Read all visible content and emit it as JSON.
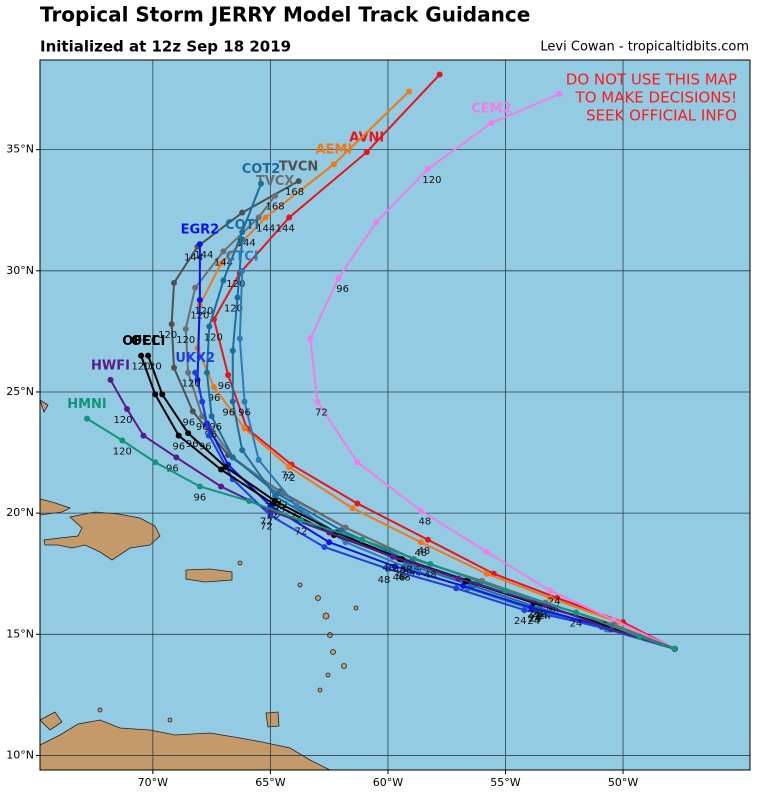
{
  "chart_data": {
    "type": "track_map",
    "title": "Tropical Storm JERRY Model Track Guidance",
    "subtitle": "Initialized at 12z Sep 18 2019",
    "credit": "Levi Cowan - tropicaltidbits.com",
    "warning": [
      "DO NOT USE THIS MAP",
      "TO MAKE DECISIONS!",
      "SEEK OFFICIAL INFO"
    ],
    "xlim": [
      -74.8,
      -44.6
    ],
    "ylim": [
      9.4,
      38.7
    ],
    "xticks": [
      {
        "value": -70,
        "label": "70°W"
      },
      {
        "value": -65,
        "label": "65°W"
      },
      {
        "value": -60,
        "label": "60°W"
      },
      {
        "value": -55,
        "label": "55°W"
      },
      {
        "value": -50,
        "label": "50°W"
      }
    ],
    "yticks": [
      {
        "value": 10,
        "label": "10°N"
      },
      {
        "value": 15,
        "label": "15°N"
      },
      {
        "value": 20,
        "label": "20°N"
      },
      {
        "value": 25,
        "label": "25°N"
      },
      {
        "value": 30,
        "label": "30°N"
      },
      {
        "value": 35,
        "label": "35°N"
      }
    ],
    "grid": true,
    "series": [
      {
        "name": "AVNI",
        "color": "#e8141c",
        "lon": [
          -47.8,
          -50.0,
          -52.8,
          -55.5,
          -58.3,
          -61.3,
          -64.1,
          -66.0,
          -66.8,
          -67.4,
          -66.3,
          -64.2,
          -60.9,
          -57.8
        ],
        "lat": [
          14.4,
          15.5,
          16.5,
          17.5,
          18.9,
          20.4,
          22.0,
          23.5,
          25.7,
          28.0,
          29.9,
          32.2,
          34.9,
          38.1
        ],
        "hour_labels": [
          null,
          null,
          24,
          null,
          48,
          null,
          72,
          null,
          96,
          null,
          120,
          144,
          null,
          null
        ]
      },
      {
        "name": "AEMI",
        "color": "#f07818",
        "lon": [
          -47.8,
          -50.2,
          -53.1,
          -55.8,
          -58.6,
          -61.5,
          -64.2,
          -66.1,
          -67.4,
          -68.1,
          -68.0,
          -67.1,
          -65.2,
          -62.3,
          -59.1
        ],
        "lat": [
          14.4,
          15.5,
          16.5,
          17.5,
          18.8,
          20.2,
          21.9,
          23.5,
          25.2,
          26.8,
          28.6,
          30.3,
          32.2,
          34.4,
          37.4
        ],
        "hour_labels": [
          null,
          null,
          24,
          null,
          48,
          null,
          72,
          null,
          96,
          null,
          120,
          null,
          144,
          null,
          null
        ]
      },
      {
        "name": "CEM2",
        "color": "#f07ce8",
        "lon": [
          -47.8,
          -50.4,
          -53.1,
          -55.8,
          -58.6,
          -61.3,
          -63.0,
          -63.3,
          -62.1,
          -60.5,
          -58.3,
          -55.6,
          -52.7
        ],
        "lat": [
          14.4,
          15.6,
          16.8,
          18.4,
          20.1,
          22.1,
          24.6,
          27.2,
          29.7,
          32.0,
          34.2,
          36.1,
          37.3
        ],
        "hour_labels": [
          null,
          null,
          24,
          null,
          48,
          null,
          72,
          null,
          96,
          null,
          120,
          null,
          null
        ]
      },
      {
        "name": "TVCN",
        "color": "#505050",
        "lon": [
          -47.8,
          -50.4,
          -53.3,
          -56.0,
          -58.9,
          -61.8,
          -64.6,
          -66.8,
          -68.3,
          -69.1,
          -69.2,
          -69.1,
          -68.1,
          -66.2,
          -63.8
        ],
        "lat": [
          14.4,
          15.4,
          16.3,
          17.2,
          18.1,
          19.4,
          20.9,
          22.4,
          24.2,
          26.0,
          27.8,
          29.5,
          31.0,
          32.4,
          33.7
        ],
        "hour_labels": [
          null,
          null,
          24,
          null,
          48,
          null,
          72,
          null,
          96,
          null,
          120,
          null,
          144,
          null,
          168
        ]
      },
      {
        "name": "TVCX",
        "color": "#6e6e6e",
        "lon": [
          -47.8,
          -50.4,
          -53.3,
          -56.0,
          -58.9,
          -61.8,
          -64.5,
          -66.6,
          -67.9,
          -68.5,
          -68.6,
          -68.2,
          -67.0,
          -65.5,
          -64.8
        ],
        "lat": [
          14.4,
          15.4,
          16.3,
          17.2,
          18.1,
          19.4,
          20.8,
          22.3,
          24.0,
          25.8,
          27.6,
          29.3,
          30.8,
          32.2,
          33.1
        ],
        "hour_labels": [
          null,
          null,
          24,
          null,
          48,
          null,
          72,
          null,
          96,
          null,
          120,
          null,
          144,
          null,
          168
        ]
      },
      {
        "name": "COT2",
        "color": "#1a6e9e",
        "lon": [
          -47.8,
          -50.5,
          -53.5,
          -56.2,
          -59.0,
          -62.0,
          -64.7,
          -66.6,
          -67.5,
          -67.7,
          -67.6,
          -67.0,
          -66.2,
          -65.4
        ],
        "lat": [
          14.4,
          15.3,
          16.2,
          17.1,
          18.0,
          19.3,
          20.8,
          22.3,
          24.0,
          25.8,
          27.7,
          29.6,
          31.6,
          33.6
        ],
        "hour_labels": [
          null,
          null,
          24,
          null,
          48,
          null,
          72,
          null,
          96,
          null,
          120,
          null,
          144,
          null
        ]
      },
      {
        "name": "COTI",
        "color": "#1a6e9e",
        "lon": [
          -47.8,
          -50.6,
          -53.6,
          -56.4,
          -59.2,
          -62.2,
          -64.8,
          -66.2,
          -66.6,
          -66.6,
          -66.4,
          -66.2
        ],
        "lat": [
          14.4,
          15.2,
          16.1,
          17.0,
          17.9,
          19.2,
          20.7,
          22.6,
          24.6,
          26.7,
          28.9,
          31.3
        ],
        "hour_labels": [
          null,
          null,
          24,
          null,
          48,
          null,
          72,
          null,
          96,
          null,
          120,
          null
        ]
      },
      {
        "name": "CTCI",
        "color": "#2b7bb9",
        "lon": [
          -47.8,
          -50.7,
          -53.8,
          -56.6,
          -59.3,
          -61.8,
          -63.9,
          -65.5,
          -66.1,
          -66.3,
          -66.2
        ],
        "lat": [
          14.4,
          15.2,
          16.0,
          16.9,
          17.8,
          18.8,
          20.3,
          22.2,
          24.6,
          27.2,
          30.0
        ],
        "hour_labels": [
          null,
          null,
          24,
          null,
          48,
          null,
          72,
          null,
          96,
          null,
          null
        ]
      },
      {
        "name": "EGR2",
        "color": "#0a14ee",
        "lon": [
          -47.8,
          -50.7,
          -53.9,
          -56.8,
          -59.7,
          -62.5,
          -65.0,
          -66.8,
          -67.7,
          -68.1,
          -68.0,
          -68.0
        ],
        "lat": [
          14.4,
          15.3,
          16.1,
          17.0,
          17.8,
          18.8,
          20.3,
          22.0,
          23.7,
          25.5,
          28.8,
          31.1
        ],
        "hour_labels": [
          null,
          null,
          24,
          null,
          48,
          null,
          72,
          null,
          96,
          null,
          120,
          144
        ]
      },
      {
        "name": "UKX2",
        "color": "#1f3fe0",
        "lon": [
          -47.8,
          -50.9,
          -54.2,
          -57.1,
          -60.0,
          -62.7,
          -65.0,
          -66.6,
          -67.6,
          -67.9,
          -68.2
        ],
        "lat": [
          14.4,
          15.3,
          16.0,
          16.9,
          17.7,
          18.6,
          19.9,
          21.4,
          23.2,
          24.6,
          25.8
        ],
        "hour_labels": [
          null,
          null,
          24,
          null,
          48,
          null,
          72,
          null,
          96,
          null,
          120
        ]
      },
      {
        "name": "OFCL",
        "color": "#000000",
        "lon": [
          -47.8,
          -50.8,
          -53.8,
          -56.7,
          -59.5,
          -62.3,
          -64.9,
          -67.1,
          -68.9,
          -69.9,
          -70.5
        ],
        "lat": [
          14.4,
          15.4,
          16.3,
          17.2,
          18.1,
          19.1,
          20.4,
          21.8,
          23.2,
          24.9,
          26.5
        ],
        "hour_labels": [
          null,
          null,
          24,
          null,
          48,
          null,
          72,
          null,
          96,
          null,
          120
        ]
      },
      {
        "name": "OFCI",
        "color": "#000000",
        "lon": [
          -47.8,
          -50.8,
          -53.8,
          -56.6,
          -59.4,
          -62.2,
          -64.8,
          -66.9,
          -68.5,
          -69.6,
          -70.2
        ],
        "lat": [
          14.4,
          15.4,
          16.3,
          17.2,
          18.1,
          19.2,
          20.5,
          21.9,
          23.3,
          24.9,
          26.5
        ],
        "hour_labels": [
          null,
          null,
          24,
          null,
          48,
          null,
          72,
          null,
          96,
          null,
          120
        ]
      },
      {
        "name": "HWFI",
        "color": "#5b1a8c",
        "lon": [
          -47.8,
          -50.5,
          -53.3,
          -57.0,
          -59.8,
          -62.5,
          -65.0,
          -67.1,
          -69.0,
          -70.4,
          -71.1,
          -71.8
        ],
        "lat": [
          14.4,
          15.2,
          16.2,
          17.3,
          18.2,
          19.2,
          20.1,
          21.1,
          22.3,
          23.2,
          24.3,
          25.5
        ],
        "hour_labels": [
          null,
          null,
          24,
          null,
          48,
          null,
          72,
          null,
          96,
          null,
          120,
          null
        ]
      },
      {
        "name": "HMNI",
        "color": "#10957a",
        "lon": [
          -47.8,
          -49.3,
          -52.0,
          -55.0,
          -58.2,
          -61.1,
          -63.7,
          -65.9,
          -68.0,
          -69.9,
          -71.3,
          -72.8
        ],
        "lat": [
          14.4,
          14.9,
          15.9,
          16.8,
          17.9,
          18.9,
          19.7,
          20.5,
          21.1,
          22.1,
          23.0,
          23.9
        ],
        "hour_labels": [
          null,
          null,
          24,
          null,
          48,
          null,
          72,
          null,
          96,
          null,
          120,
          null
        ]
      }
    ]
  }
}
